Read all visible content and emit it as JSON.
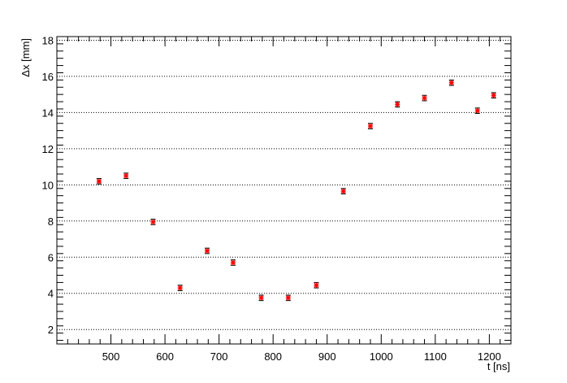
{
  "chart_data": {
    "type": "scatter",
    "title": "",
    "xlabel": "t [ns]",
    "ylabel": "Δx [mm]",
    "xlim": [
      400,
      1240
    ],
    "ylim": [
      1.2,
      18.2
    ],
    "x_ticks": [
      500,
      600,
      700,
      800,
      900,
      1000,
      1100,
      1200
    ],
    "y_ticks": [
      2,
      4,
      6,
      8,
      10,
      12,
      14,
      16,
      18
    ],
    "grid": "horizontal dotted",
    "marker_color": "#ff0000",
    "errorbar_color": "#000000",
    "series": [
      {
        "x": [
          478,
          528,
          578,
          628,
          678,
          726,
          778,
          828,
          880,
          930,
          980,
          1030,
          1080,
          1130,
          1178,
          1208
        ],
        "y": [
          10.2,
          10.5,
          7.95,
          4.3,
          6.35,
          5.7,
          3.75,
          3.75,
          4.45,
          9.65,
          13.25,
          14.45,
          14.8,
          15.65,
          14.1,
          14.95
        ],
        "yerr": [
          0.15,
          0.15,
          0.15,
          0.15,
          0.15,
          0.15,
          0.15,
          0.15,
          0.15,
          0.15,
          0.15,
          0.15,
          0.15,
          0.15,
          0.15,
          0.15
        ]
      }
    ]
  }
}
